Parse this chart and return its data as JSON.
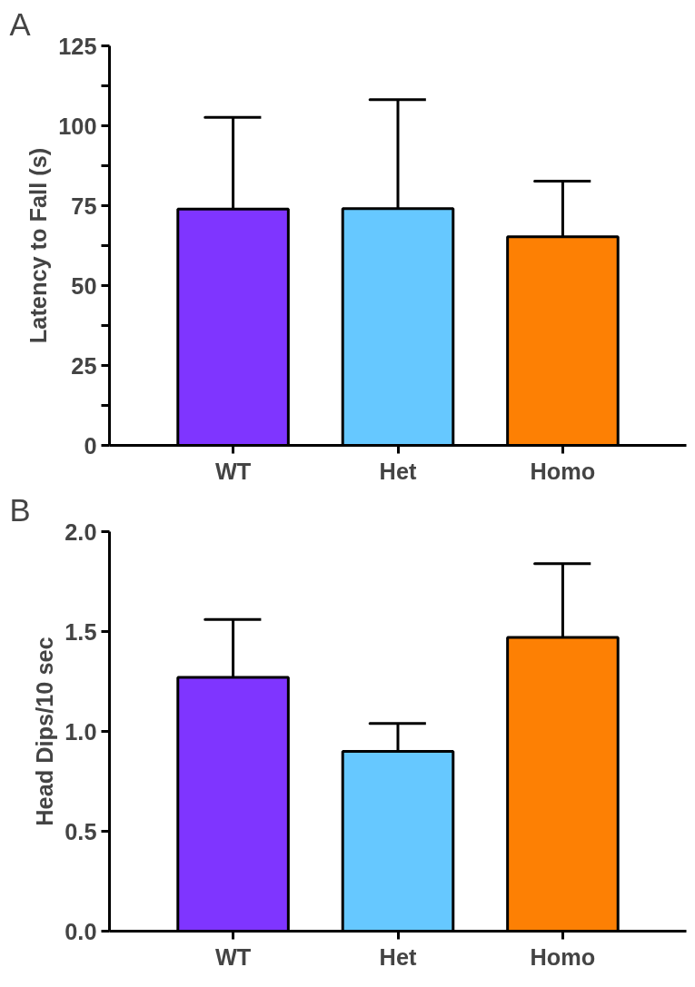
{
  "chart_data": [
    {
      "type": "bar",
      "title": "A",
      "ylabel": "Latency to Fall (s)",
      "categories": [
        "WT",
        "Het",
        "Homo"
      ],
      "colors": [
        "#7f35ff",
        "#66c8ff",
        "#fd8004"
      ],
      "values": [
        73.9,
        74.1,
        65.3
      ],
      "errors": [
        [
          73.9,
          102.6
        ],
        [
          74.1,
          108.2
        ],
        [
          65.3,
          82.7
        ]
      ],
      "ylim": [
        0,
        125
      ],
      "yticks": [
        0,
        {
          "value": 12.5,
          "label": null
        },
        25,
        {
          "value": 37.5,
          "label": null
        },
        50,
        {
          "value": 62.5,
          "label": null
        },
        75,
        {
          "value": 87.5,
          "label": null
        },
        100,
        {
          "value": 112.5,
          "label": null
        },
        125
      ],
      "grid": false
    },
    {
      "type": "bar",
      "title": "B",
      "ylabel": "Head Dips/10 sec",
      "categories": [
        "WT",
        "Het",
        "Homo"
      ],
      "colors": [
        "#7f35ff",
        "#66c8ff",
        "#fd8004"
      ],
      "values": [
        1.27,
        0.9,
        1.47
      ],
      "errors": [
        [
          1.27,
          1.56
        ],
        [
          0.9,
          1.04
        ],
        [
          1.47,
          1.84
        ]
      ],
      "ylim": [
        0,
        2.0
      ],
      "yticks": [
        {
          "value": 0,
          "label": "0.0"
        },
        {
          "value": 0.5,
          "label": "0.5"
        },
        {
          "value": 1.0,
          "label": "1.0"
        },
        {
          "value": 1.5,
          "label": "1.5"
        },
        {
          "value": 2.0,
          "label": "2.0"
        }
      ],
      "grid": false
    }
  ]
}
